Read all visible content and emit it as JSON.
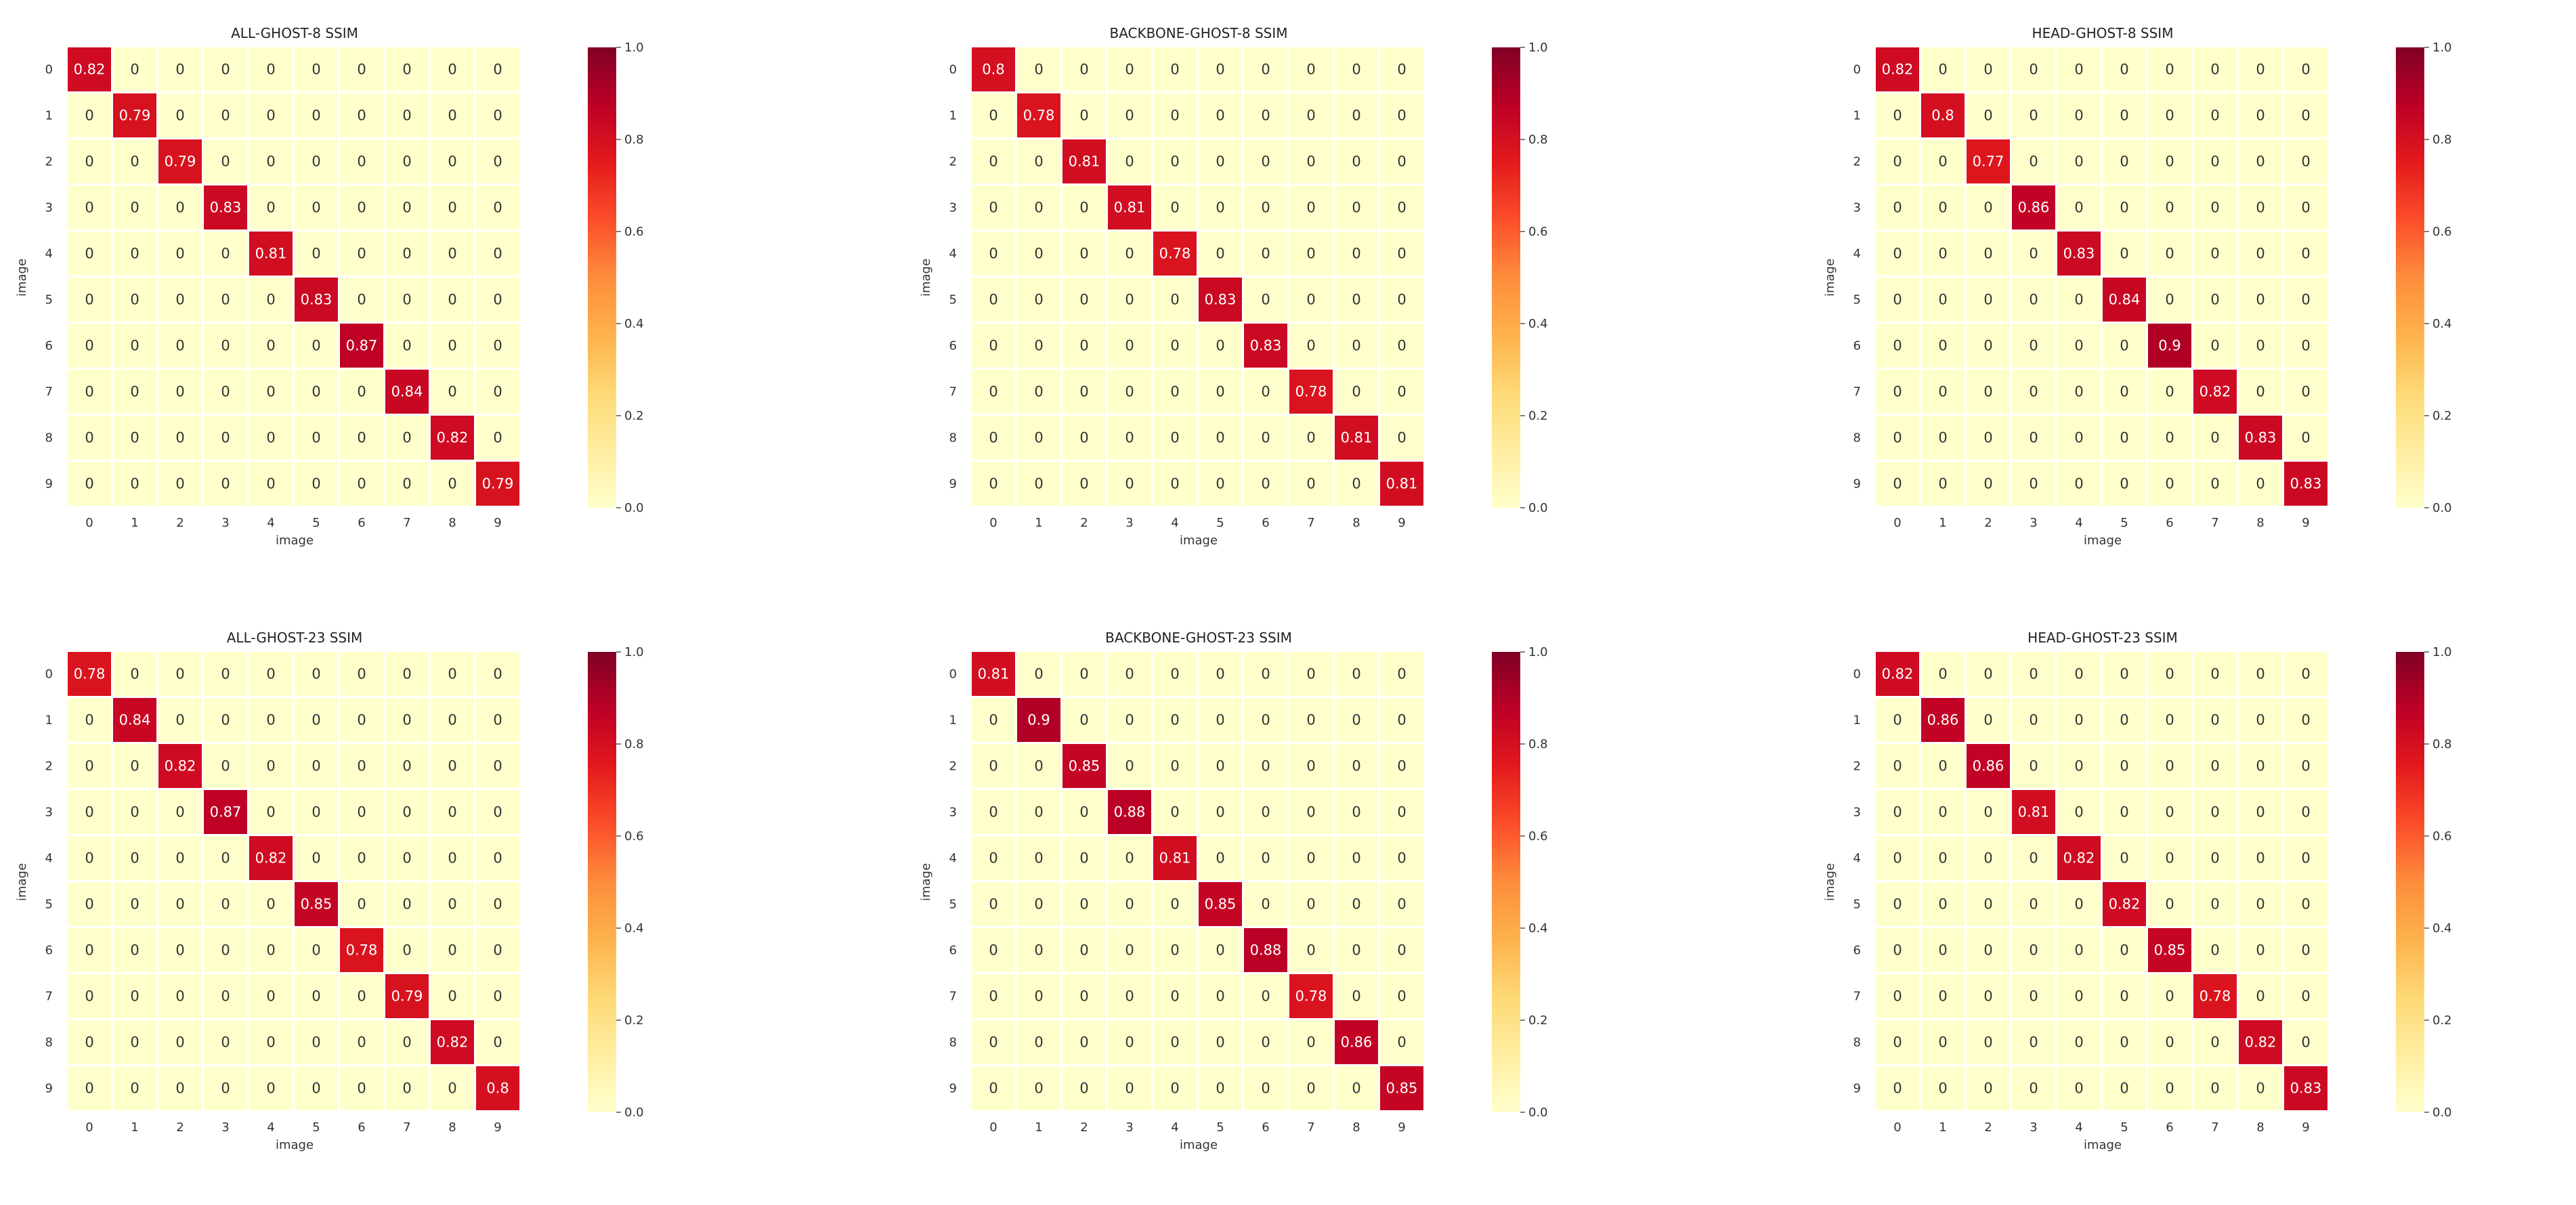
{
  "colormap": {
    "name": "YlOrRd",
    "stops": [
      "#ffffcc",
      "#ffeda0",
      "#fed976",
      "#feb24c",
      "#fd8d3c",
      "#fc4e2a",
      "#e31a1c",
      "#bd0026",
      "#800026"
    ]
  },
  "chart_data": [
    {
      "type": "heatmap",
      "title": "ALL-GHOST-8 SSIM",
      "xlabel": "image",
      "ylabel": "image",
      "x_categories": [
        "0",
        "1",
        "2",
        "3",
        "4",
        "5",
        "6",
        "7",
        "8",
        "9"
      ],
      "y_categories": [
        "0",
        "1",
        "2",
        "3",
        "4",
        "5",
        "6",
        "7",
        "8",
        "9"
      ],
      "diagonal_values": [
        0.82,
        0.79,
        0.79,
        0.83,
        0.81,
        0.83,
        0.87,
        0.84,
        0.82,
        0.79
      ],
      "off_diagonal_value": 0,
      "vmin": 0,
      "vmax": 1.0,
      "colorbar_ticks": [
        "0.0",
        "0.2",
        "0.4",
        "0.6",
        "0.8",
        "1.0"
      ]
    },
    {
      "type": "heatmap",
      "title": "BACKBONE-GHOST-8 SSIM",
      "xlabel": "image",
      "ylabel": "image",
      "x_categories": [
        "0",
        "1",
        "2",
        "3",
        "4",
        "5",
        "6",
        "7",
        "8",
        "9"
      ],
      "y_categories": [
        "0",
        "1",
        "2",
        "3",
        "4",
        "5",
        "6",
        "7",
        "8",
        "9"
      ],
      "diagonal_values": [
        0.8,
        0.78,
        0.81,
        0.81,
        0.78,
        0.83,
        0.83,
        0.78,
        0.81,
        0.81
      ],
      "off_diagonal_value": 0,
      "vmin": 0,
      "vmax": 1.0,
      "colorbar_ticks": [
        "0.0",
        "0.2",
        "0.4",
        "0.6",
        "0.8",
        "1.0"
      ]
    },
    {
      "type": "heatmap",
      "title": "HEAD-GHOST-8 SSIM",
      "xlabel": "image",
      "ylabel": "image",
      "x_categories": [
        "0",
        "1",
        "2",
        "3",
        "4",
        "5",
        "6",
        "7",
        "8",
        "9"
      ],
      "y_categories": [
        "0",
        "1",
        "2",
        "3",
        "4",
        "5",
        "6",
        "7",
        "8",
        "9"
      ],
      "diagonal_values": [
        0.82,
        0.8,
        0.77,
        0.86,
        0.83,
        0.84,
        0.9,
        0.82,
        0.83,
        0.83
      ],
      "off_diagonal_value": 0,
      "vmin": 0,
      "vmax": 1.0,
      "colorbar_ticks": [
        "0.0",
        "0.2",
        "0.4",
        "0.6",
        "0.8",
        "1.0"
      ]
    },
    {
      "type": "heatmap",
      "title": "ALL-GHOST-23 SSIM",
      "xlabel": "image",
      "ylabel": "image",
      "x_categories": [
        "0",
        "1",
        "2",
        "3",
        "4",
        "5",
        "6",
        "7",
        "8",
        "9"
      ],
      "y_categories": [
        "0",
        "1",
        "2",
        "3",
        "4",
        "5",
        "6",
        "7",
        "8",
        "9"
      ],
      "diagonal_values": [
        0.78,
        0.84,
        0.82,
        0.87,
        0.82,
        0.85,
        0.78,
        0.79,
        0.82,
        0.8
      ],
      "off_diagonal_value": 0,
      "vmin": 0,
      "vmax": 1.0,
      "colorbar_ticks": [
        "0.0",
        "0.2",
        "0.4",
        "0.6",
        "0.8",
        "1.0"
      ]
    },
    {
      "type": "heatmap",
      "title": "BACKBONE-GHOST-23 SSIM",
      "xlabel": "image",
      "ylabel": "image",
      "x_categories": [
        "0",
        "1",
        "2",
        "3",
        "4",
        "5",
        "6",
        "7",
        "8",
        "9"
      ],
      "y_categories": [
        "0",
        "1",
        "2",
        "3",
        "4",
        "5",
        "6",
        "7",
        "8",
        "9"
      ],
      "diagonal_values": [
        0.81,
        0.9,
        0.85,
        0.88,
        0.81,
        0.85,
        0.88,
        0.78,
        0.86,
        0.85
      ],
      "off_diagonal_value": 0,
      "vmin": 0,
      "vmax": 1.0,
      "colorbar_ticks": [
        "0.0",
        "0.2",
        "0.4",
        "0.6",
        "0.8",
        "1.0"
      ]
    },
    {
      "type": "heatmap",
      "title": "HEAD-GHOST-23 SSIM",
      "xlabel": "image",
      "ylabel": "image",
      "x_categories": [
        "0",
        "1",
        "2",
        "3",
        "4",
        "5",
        "6",
        "7",
        "8",
        "9"
      ],
      "y_categories": [
        "0",
        "1",
        "2",
        "3",
        "4",
        "5",
        "6",
        "7",
        "8",
        "9"
      ],
      "diagonal_values": [
        0.82,
        0.86,
        0.86,
        0.81,
        0.82,
        0.82,
        0.85,
        0.78,
        0.82,
        0.83
      ],
      "off_diagonal_value": 0,
      "vmin": 0,
      "vmax": 1.0,
      "colorbar_ticks": [
        "0.0",
        "0.2",
        "0.4",
        "0.6",
        "0.8",
        "1.0"
      ]
    }
  ]
}
